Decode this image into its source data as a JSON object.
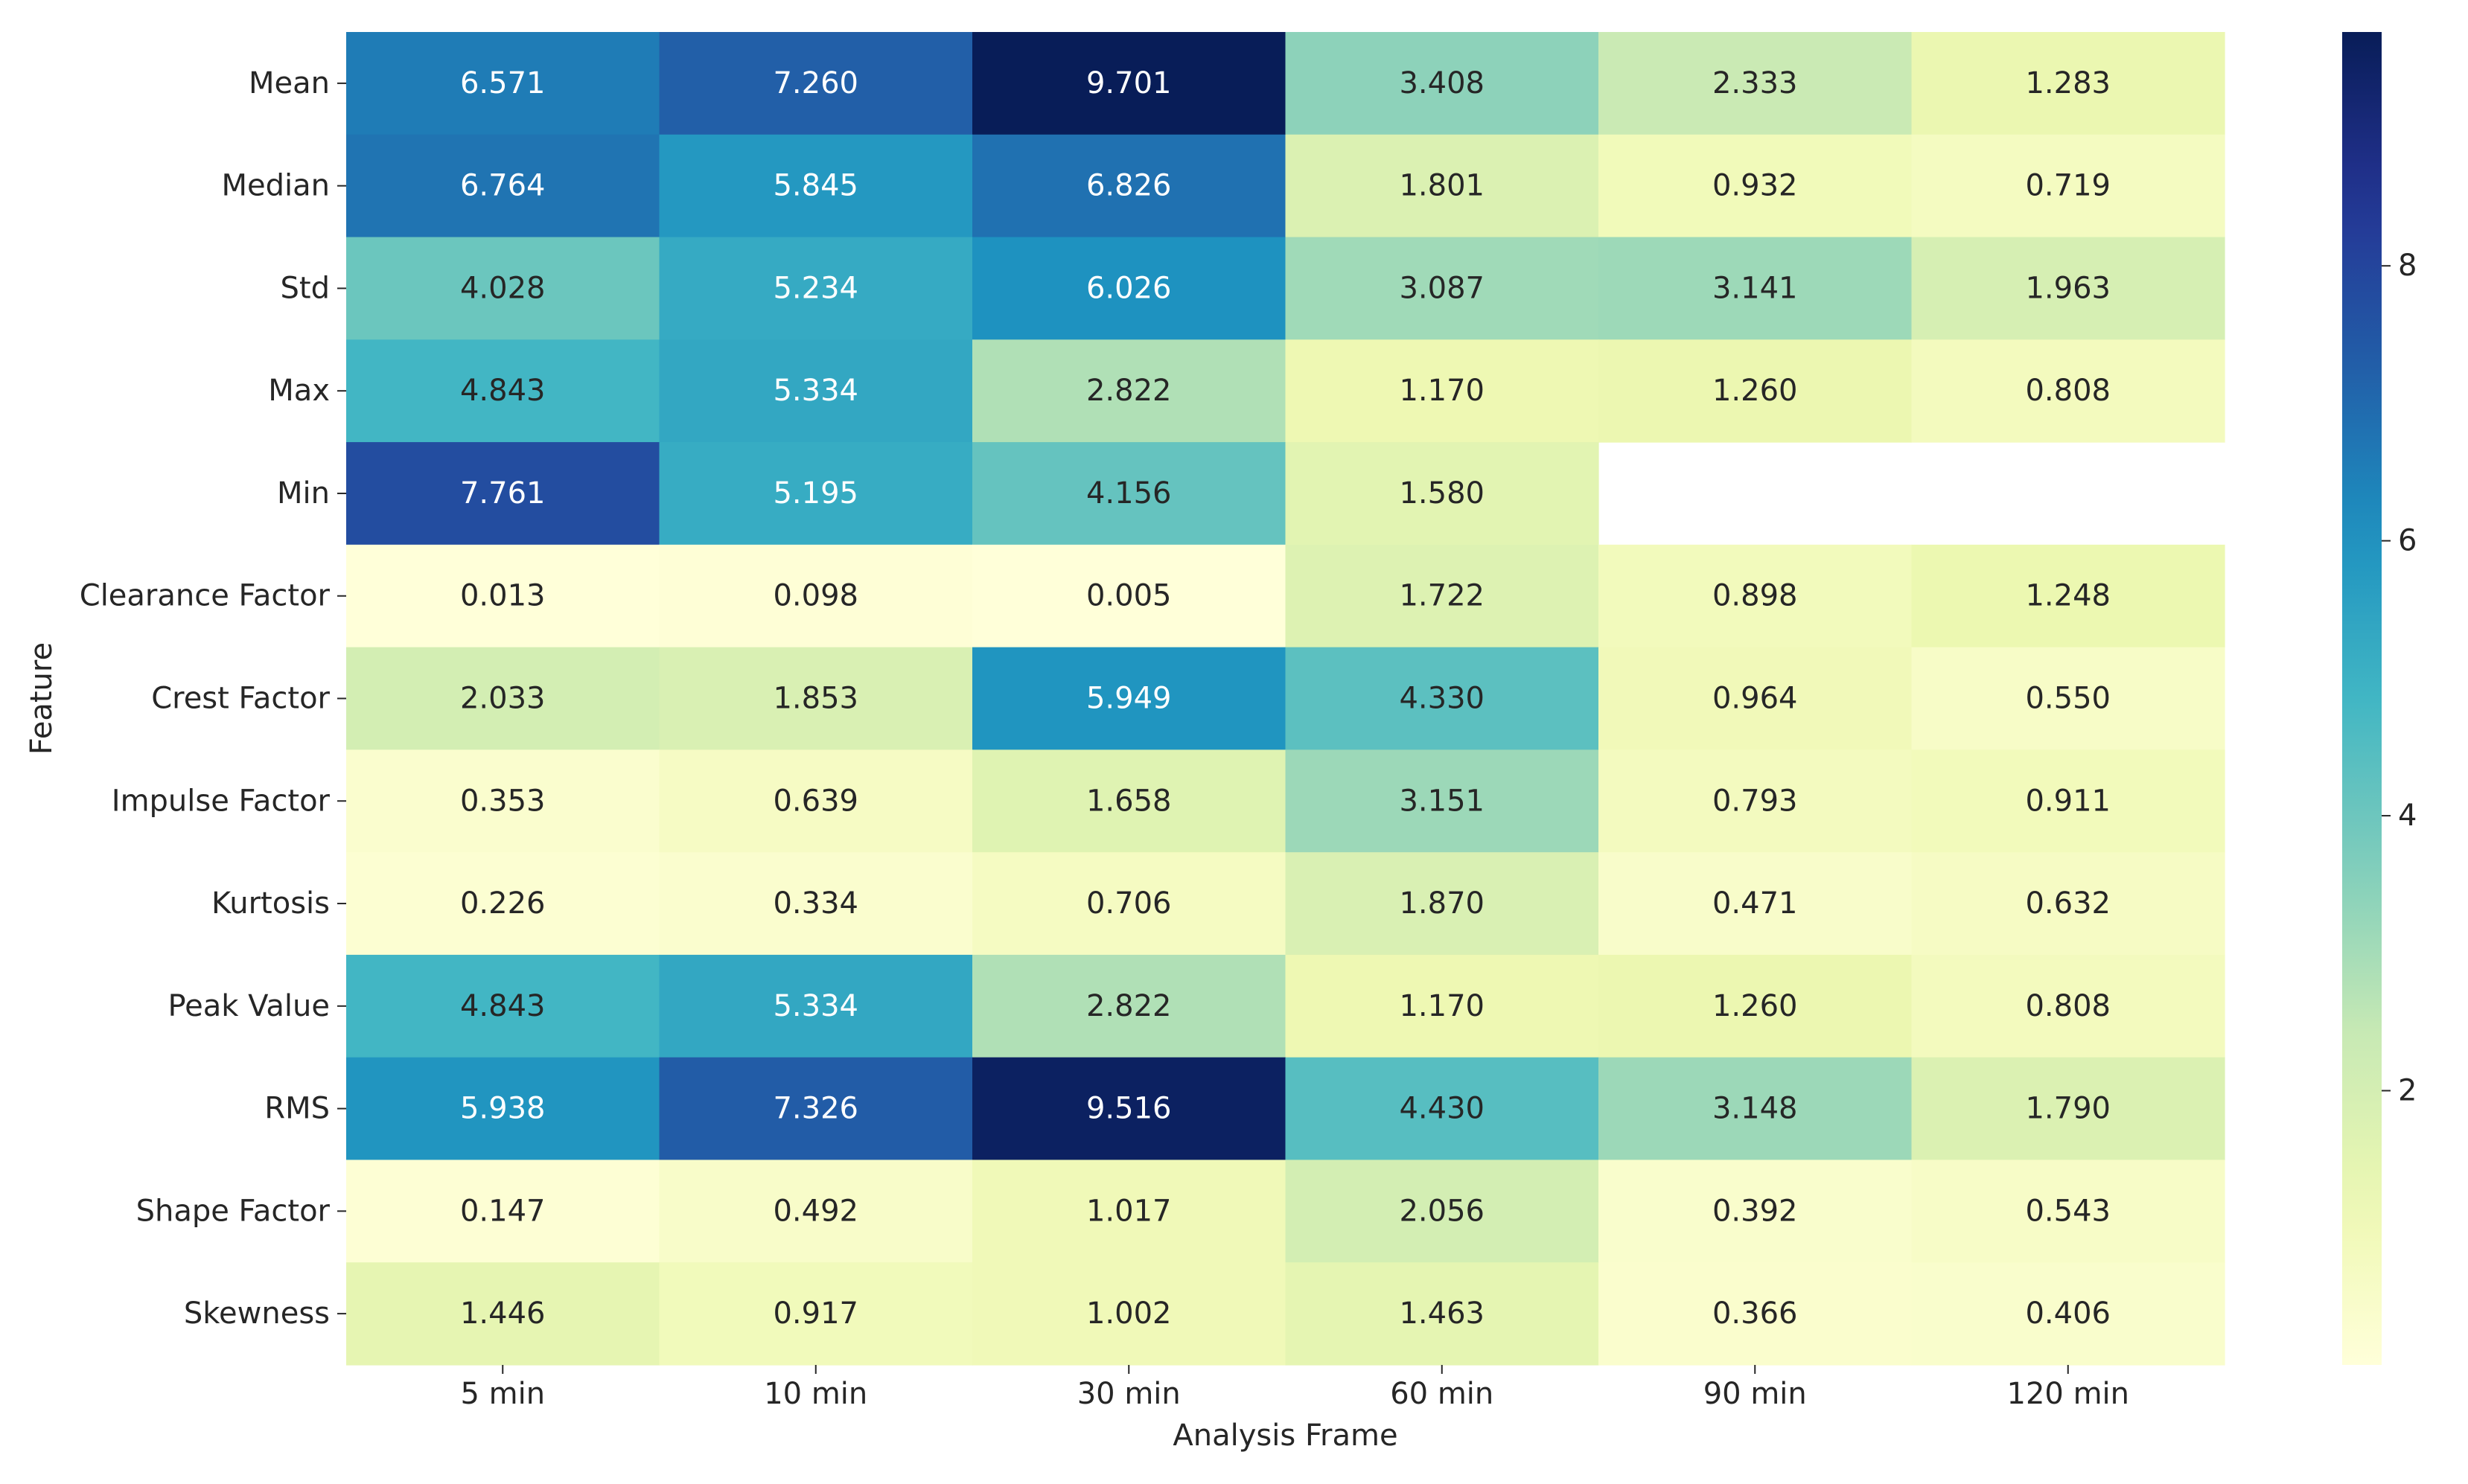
{
  "chart_data": {
    "type": "heatmap",
    "title": "",
    "xlabel": "Analysis Frame",
    "ylabel": "Feature",
    "x_categories": [
      "5 min",
      "10 min",
      "30 min",
      "60 min",
      "90 min",
      "120 min"
    ],
    "y_categories": [
      "Mean",
      "Median",
      "Std",
      "Max",
      "Min",
      "Clearance Factor",
      "Crest Factor",
      "Impulse Factor",
      "Kurtosis",
      "Peak Value",
      "RMS",
      "Shape Factor",
      "Skewness"
    ],
    "values": [
      [
        6.571,
        7.26,
        9.701,
        3.408,
        2.333,
        1.283
      ],
      [
        6.764,
        5.845,
        6.826,
        1.801,
        0.932,
        0.719
      ],
      [
        4.028,
        5.234,
        6.026,
        3.087,
        3.141,
        1.963
      ],
      [
        4.843,
        5.334,
        2.822,
        1.17,
        1.26,
        0.808
      ],
      [
        7.761,
        5.195,
        4.156,
        1.58,
        null,
        null
      ],
      [
        0.013,
        0.098,
        0.005,
        1.722,
        0.898,
        1.248
      ],
      [
        2.033,
        1.853,
        5.949,
        4.33,
        0.964,
        0.55
      ],
      [
        0.353,
        0.639,
        1.658,
        3.151,
        0.793,
        0.911
      ],
      [
        0.226,
        0.334,
        0.706,
        1.87,
        0.471,
        0.632
      ],
      [
        4.843,
        5.334,
        2.822,
        1.17,
        1.26,
        0.808
      ],
      [
        5.938,
        7.326,
        9.516,
        4.43,
        3.148,
        1.79
      ],
      [
        0.147,
        0.492,
        1.017,
        2.056,
        0.392,
        0.543
      ],
      [
        1.446,
        0.917,
        1.002,
        1.463,
        0.366,
        0.406
      ]
    ],
    "value_format": "3 decimals",
    "colormap": "YlGnBu",
    "color_range": [
      0.005,
      9.701
    ],
    "colorbar": {
      "ticks": [
        2,
        4,
        6,
        8
      ],
      "tick_labels": [
        "2",
        "4",
        "6",
        "8"
      ]
    },
    "missing_values": "blank"
  }
}
